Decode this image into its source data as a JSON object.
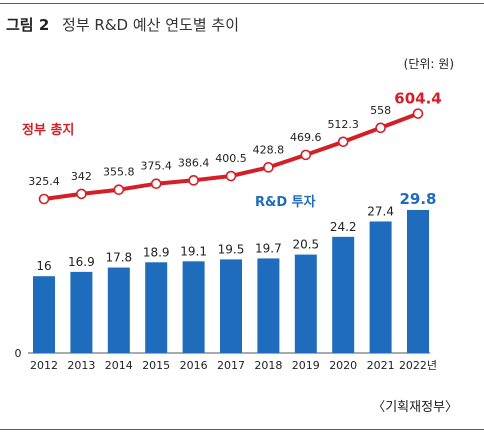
{
  "figure": {
    "number": "그림 2",
    "title": "정부 R&D 예산 연도별 추이",
    "unit": "(단위: 원)",
    "source": "〈기획재정부〉"
  },
  "chart_data": {
    "type": "bar",
    "categories": [
      "2012",
      "2013",
      "2014",
      "2015",
      "2016",
      "2017",
      "2018",
      "2019",
      "2020",
      "2021",
      "2022년"
    ],
    "series": [
      {
        "name": "R&D 투자",
        "type": "bar",
        "color": "#1f6cbc",
        "values": [
          16,
          16.9,
          17.8,
          18.9,
          19.1,
          19.5,
          19.7,
          20.5,
          24.2,
          27.4,
          29.8
        ],
        "labels": [
          "16",
          "16.9",
          "17.8",
          "18.9",
          "19.1",
          "19.5",
          "19.7",
          "20.5",
          "24.2",
          "27.4",
          "29.8"
        ]
      },
      {
        "name": "정부 총지",
        "type": "line",
        "color": "#d32027",
        "values": [
          325.4,
          342,
          355.8,
          375.4,
          386.4,
          400.5,
          428.8,
          469.6,
          512.3,
          558,
          604.4
        ],
        "labels": [
          "325.4",
          "342",
          "355.8",
          "375.4",
          "386.4",
          "400.5",
          "428.8",
          "469.6",
          "512.3",
          "558",
          "604.4"
        ]
      }
    ],
    "y_zero_label": "0",
    "highlight_last": true
  }
}
